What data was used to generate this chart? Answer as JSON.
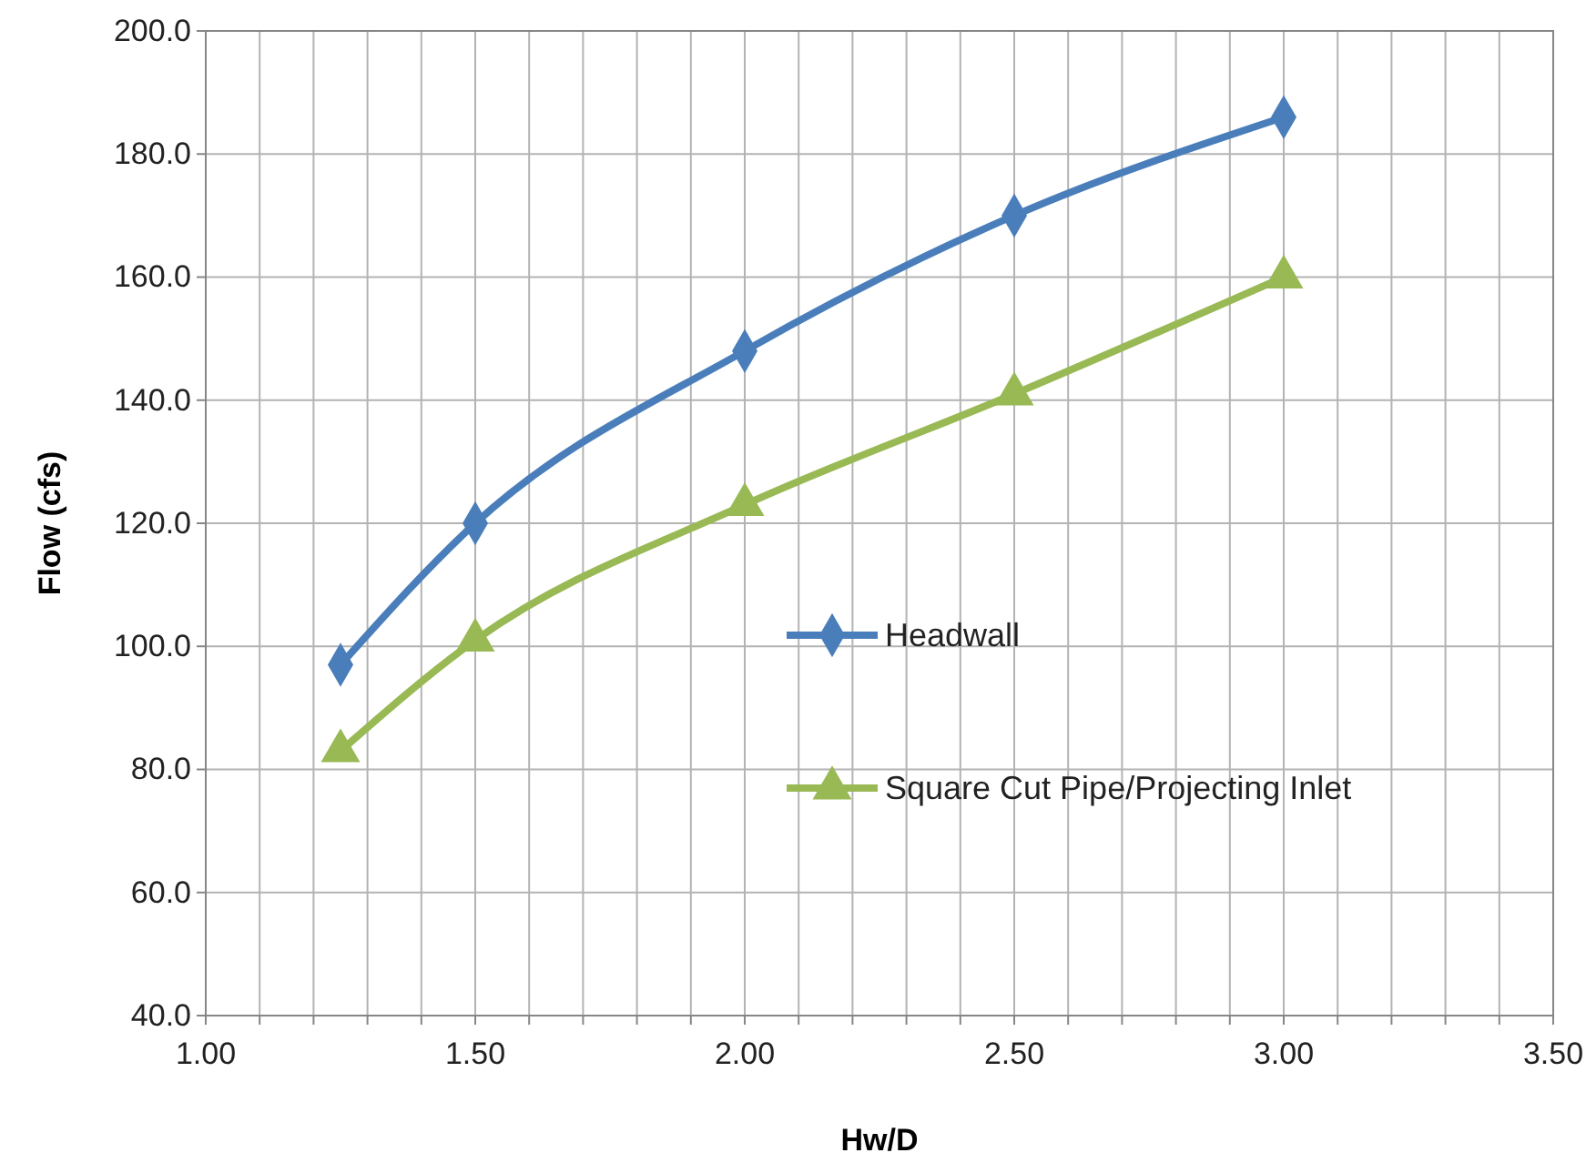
{
  "chart_data": {
    "type": "line",
    "xlabel": "Hw/D",
    "ylabel": "Flow (cfs)",
    "x": [
      1.25,
      1.5,
      2.0,
      2.5,
      3.0
    ],
    "series": [
      {
        "name": "Headwall",
        "color": "#4a7ebb",
        "values": [
          97,
          120,
          148,
          170,
          186
        ],
        "marker": "diamond"
      },
      {
        "name": "Square Cut Pipe/Projecting Inlet",
        "color": "#98b954",
        "values": [
          83,
          101,
          123,
          141,
          160
        ],
        "marker": "triangle"
      }
    ],
    "xlim": [
      1.0,
      3.5
    ],
    "xticks": [
      {
        "value": 1.0,
        "label": "1.00"
      },
      {
        "value": 1.1,
        "label": null
      },
      {
        "value": 1.2,
        "label": null
      },
      {
        "value": 1.3,
        "label": null
      },
      {
        "value": 1.4,
        "label": null
      },
      {
        "value": 1.5,
        "label": "1.50"
      },
      {
        "value": 1.6,
        "label": null
      },
      {
        "value": 1.7,
        "label": null
      },
      {
        "value": 1.8,
        "label": null
      },
      {
        "value": 1.9,
        "label": null
      },
      {
        "value": 2.0,
        "label": "2.00"
      },
      {
        "value": 2.1,
        "label": null
      },
      {
        "value": 2.2,
        "label": null
      },
      {
        "value": 2.3,
        "label": null
      },
      {
        "value": 2.4,
        "label": null
      },
      {
        "value": 2.5,
        "label": "2.50"
      },
      {
        "value": 2.6,
        "label": null
      },
      {
        "value": 2.7,
        "label": null
      },
      {
        "value": 2.8,
        "label": null
      },
      {
        "value": 2.9,
        "label": null
      },
      {
        "value": 3.0,
        "label": "3.00"
      },
      {
        "value": 3.1,
        "label": null
      },
      {
        "value": 3.2,
        "label": null
      },
      {
        "value": 3.3,
        "label": null
      },
      {
        "value": 3.4,
        "label": null
      },
      {
        "value": 3.5,
        "label": "3.50"
      }
    ],
    "ylim": [
      40,
      200
    ],
    "yticks": [
      {
        "value": 40,
        "label": "40.0"
      },
      {
        "value": 60,
        "label": "60.0"
      },
      {
        "value": 80,
        "label": "80.0"
      },
      {
        "value": 100,
        "label": "100.0"
      },
      {
        "value": 120,
        "label": "120.0"
      },
      {
        "value": 140,
        "label": "140.0"
      },
      {
        "value": 160,
        "label": "160.0"
      },
      {
        "value": 180,
        "label": "180.0"
      },
      {
        "value": 200,
        "label": "200.0"
      }
    ],
    "grid": true,
    "legend": "right",
    "line_style": "solid"
  }
}
